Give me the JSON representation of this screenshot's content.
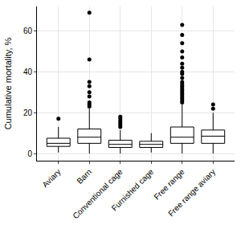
{
  "chart_data": {
    "type": "box",
    "y_label": "Cumulative mortality, %",
    "categories": [
      "Aviary",
      "Barn",
      "Conventional cage",
      "Furnished cage",
      "Free range",
      "Free range aviary"
    ],
    "lower": [
      0.5,
      0,
      0,
      0.5,
      0,
      0
    ],
    "q1": [
      3.5,
      5,
      3,
      3,
      5,
      5
    ],
    "median": [
      5,
      8,
      4.5,
      4.5,
      8,
      8.5
    ],
    "q3": [
      7.5,
      12,
      6.5,
      6,
      13,
      11.5
    ],
    "upper": [
      13,
      22,
      11.5,
      10,
      24,
      20
    ],
    "outliers": [
      [
        17
      ],
      [
        23,
        24,
        25,
        28,
        30,
        33,
        35,
        46,
        69
      ],
      [
        13,
        14,
        15,
        16,
        17,
        18
      ],
      [],
      [
        25,
        26,
        27,
        28,
        29,
        30,
        31,
        32,
        33,
        34,
        35,
        37,
        39,
        40,
        42,
        44,
        47,
        50,
        54,
        58,
        63
      ],
      [
        22,
        24
      ]
    ],
    "color": "#000000",
    "ylim": [
      -3.5,
      72
    ],
    "yticks": [
      0,
      20,
      40,
      60
    ],
    "grid": true
  }
}
